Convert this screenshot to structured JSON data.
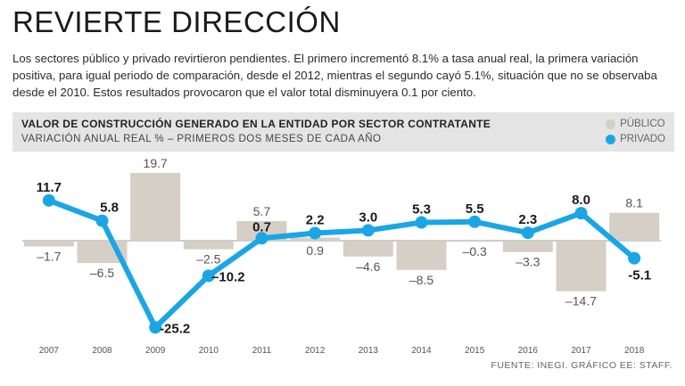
{
  "headline": "REVIERTE DIRECCIÓN",
  "intro": "Los sectores público y privado revirtieron pendientes. El primero incrementó 8.1% a tasa anual real, la primera variación positiva, para igual periodo de comparación, desde el 2012, mientras el segundo cayó 5.1%, situación que no se observaba desde el 2010. Estos resultados provocaron que el valor total disminuyera 0.1 por ciento.",
  "source": "FUENTE: INEGI. GRÁFICO EE: STAFF.",
  "colors": {
    "publico": "#d6cfc5",
    "privado": "#1aa6e6",
    "header_bg": "#e4e4e4"
  },
  "chart_data": {
    "type": "bar",
    "title": "VALOR DE CONSTRUCCIÓN GENERADO EN LA ENTIDAD POR SECTOR CONTRATANTE",
    "subtitle": "VARIACIÓN ANUAL REAL % – PRIMEROS DOS MESES DE CADA AÑO",
    "categories": [
      "2007",
      "2008",
      "2009",
      "2010",
      "2011",
      "2012",
      "2013",
      "2014",
      "2015",
      "2016",
      "2017",
      "2018"
    ],
    "ylim": [
      -26,
      21
    ],
    "series": [
      {
        "name": "PÚBLICO",
        "type": "bar",
        "values": [
          -1.7,
          -6.5,
          19.7,
          -2.5,
          5.7,
          0.9,
          -4.6,
          -8.5,
          -0.3,
          -3.3,
          -14.7,
          8.1
        ],
        "labels": [
          "–1.7",
          "–6.5",
          "19.7",
          "–2.5",
          "5.7",
          "0.9",
          "–4.6",
          "–8.5",
          "–0.3",
          "–3.3",
          "–14.7",
          "8.1"
        ]
      },
      {
        "name": "PRIVADO",
        "type": "line",
        "values": [
          11.7,
          5.8,
          -25.2,
          -10.2,
          0.7,
          2.2,
          3.0,
          5.3,
          5.5,
          2.3,
          8.0,
          -5.1
        ],
        "labels": [
          "11.7",
          "5.8",
          "-25.2",
          "–10.2",
          "0.7",
          "2.2",
          "3.0",
          "5.3",
          "5.5",
          "2.3",
          "8.0",
          "-5.1"
        ]
      }
    ]
  }
}
